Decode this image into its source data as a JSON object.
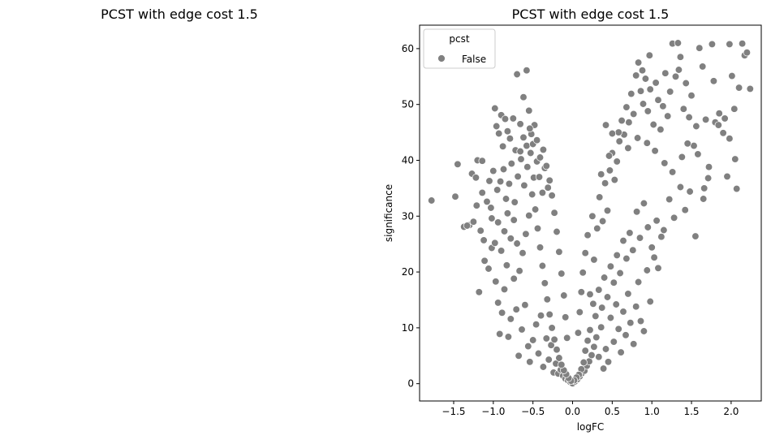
{
  "left_panel": {
    "title": "PCST with edge cost 1.5"
  },
  "chart_data": {
    "type": "scatter",
    "title": "PCST with edge cost 1.5",
    "xlabel": "logFC",
    "ylabel": "significance",
    "xlim": [
      -1.93,
      2.38
    ],
    "ylim": [
      -3.1,
      64.2
    ],
    "xticks": [
      -1.5,
      -1.0,
      -0.5,
      0.0,
      0.5,
      1.0,
      1.5,
      2.0
    ],
    "xtick_labels": [
      "−1.5",
      "−1.0",
      "−0.5",
      "0.0",
      "0.5",
      "1.0",
      "1.5",
      "2.0"
    ],
    "yticks": [
      0,
      10,
      20,
      30,
      40,
      50,
      60
    ],
    "ytick_labels": [
      "0",
      "10",
      "20",
      "30",
      "40",
      "50",
      "60"
    ],
    "legend": {
      "title": "pcst",
      "position": "top-left",
      "entries": [
        {
          "label": "False",
          "color": "#808080"
        }
      ]
    },
    "series": [
      {
        "name": "False",
        "color": "#808080",
        "edge_color": "#ffffff",
        "description": "volcano-shaped gene cloud; representative sample of the visible points",
        "points": [
          [
            -1.78,
            32.8
          ],
          [
            -1.48,
            33.5
          ],
          [
            -1.45,
            39.3
          ],
          [
            -1.37,
            28.1
          ],
          [
            -1.3,
            28.4
          ],
          [
            -1.27,
            37.6
          ],
          [
            -1.22,
            36.9
          ],
          [
            -1.2,
            40.0
          ],
          [
            -1.16,
            27.4
          ],
          [
            -1.14,
            39.9
          ],
          [
            -1.12,
            25.7
          ],
          [
            -1.08,
            32.6
          ],
          [
            -1.03,
            31.5
          ],
          [
            -0.98,
            49.3
          ],
          [
            -0.96,
            46.1
          ],
          [
            -0.93,
            44.8
          ],
          [
            -0.9,
            48.1
          ],
          [
            -0.88,
            42.5
          ],
          [
            -0.85,
            47.4
          ],
          [
            -0.82,
            45.2
          ],
          [
            -0.79,
            43.9
          ],
          [
            -0.75,
            47.5
          ],
          [
            -0.72,
            41.8
          ],
          [
            -0.7,
            55.4
          ],
          [
            -0.66,
            46.5
          ],
          [
            -0.62,
            51.3
          ],
          [
            -0.58,
            56.1
          ],
          [
            -0.55,
            48.9
          ],
          [
            -0.52,
            44.7
          ],
          [
            -0.48,
            46.3
          ],
          [
            -1.05,
            36.3
          ],
          [
            -1.0,
            38.1
          ],
          [
            -0.95,
            34.7
          ],
          [
            -0.91,
            36.2
          ],
          [
            -0.87,
            38.4
          ],
          [
            -0.84,
            33.1
          ],
          [
            -0.8,
            35.8
          ],
          [
            -0.77,
            39.4
          ],
          [
            -0.73,
            32.5
          ],
          [
            -0.69,
            37.1
          ],
          [
            -0.65,
            40.2
          ],
          [
            -0.61,
            35.5
          ],
          [
            -0.57,
            38.8
          ],
          [
            -0.53,
            41.3
          ],
          [
            -0.49,
            36.9
          ],
          [
            -0.45,
            39.8
          ],
          [
            -0.42,
            37.0
          ],
          [
            -0.38,
            34.2
          ],
          [
            -0.35,
            38.6
          ],
          [
            -0.31,
            35.1
          ],
          [
            -1.18,
            16.4
          ],
          [
            -1.11,
            22.0
          ],
          [
            -1.06,
            20.6
          ],
          [
            -1.02,
            24.3
          ],
          [
            -0.97,
            18.3
          ],
          [
            -0.94,
            14.5
          ],
          [
            -0.92,
            8.9
          ],
          [
            -0.89,
            12.7
          ],
          [
            -0.86,
            16.9
          ],
          [
            -0.83,
            21.2
          ],
          [
            -0.81,
            8.4
          ],
          [
            -0.78,
            11.6
          ],
          [
            -0.74,
            18.8
          ],
          [
            -0.71,
            13.3
          ],
          [
            -0.68,
            5.0
          ],
          [
            -0.64,
            9.7
          ],
          [
            -0.6,
            14.1
          ],
          [
            -0.56,
            6.7
          ],
          [
            -0.54,
            3.9
          ],
          [
            -0.5,
            7.8
          ],
          [
            -0.46,
            10.6
          ],
          [
            -0.43,
            5.4
          ],
          [
            -0.4,
            12.2
          ],
          [
            -0.37,
            3.0
          ],
          [
            -0.33,
            8.1
          ],
          [
            -0.3,
            4.3
          ],
          [
            -0.27,
            6.9
          ],
          [
            -0.24,
            2.0
          ],
          [
            -0.21,
            3.6
          ],
          [
            -0.18,
            1.8
          ],
          [
            -0.15,
            2.5
          ],
          [
            -0.12,
            1.4
          ],
          [
            -0.09,
            0.9
          ],
          [
            -0.06,
            0.6
          ],
          [
            -0.03,
            0.3
          ],
          [
            0.0,
            0.05
          ],
          [
            0.03,
            0.4
          ],
          [
            0.06,
            0.8
          ],
          [
            0.09,
            1.3
          ],
          [
            0.12,
            1.9
          ],
          [
            0.15,
            2.3
          ],
          [
            0.18,
            3.2
          ],
          [
            0.21,
            4.0
          ],
          [
            0.24,
            5.1
          ],
          [
            0.27,
            6.6
          ],
          [
            0.3,
            8.3
          ],
          [
            0.33,
            4.8
          ],
          [
            0.36,
            10.1
          ],
          [
            0.39,
            2.7
          ],
          [
            0.42,
            6.2
          ],
          [
            0.45,
            3.9
          ],
          [
            0.48,
            11.8
          ],
          [
            0.52,
            7.5
          ],
          [
            0.55,
            14.2
          ],
          [
            0.58,
            9.8
          ],
          [
            0.61,
            5.6
          ],
          [
            0.64,
            12.9
          ],
          [
            0.67,
            8.7
          ],
          [
            0.7,
            16.1
          ],
          [
            0.73,
            10.9
          ],
          [
            0.77,
            7.1
          ],
          [
            0.8,
            13.8
          ],
          [
            0.83,
            18.2
          ],
          [
            0.86,
            11.2
          ],
          [
            0.9,
            9.4
          ],
          [
            0.94,
            20.3
          ],
          [
            0.98,
            14.7
          ],
          [
            1.03,
            22.6
          ],
          [
            1.08,
            20.7
          ],
          [
            1.12,
            26.3
          ],
          [
            0.22,
            16.0
          ],
          [
            0.27,
            22.2
          ],
          [
            0.31,
            27.8
          ],
          [
            0.34,
            33.4
          ],
          [
            0.38,
            29.1
          ],
          [
            0.41,
            35.9
          ],
          [
            0.44,
            31.0
          ],
          [
            0.47,
            38.2
          ],
          [
            0.5,
            41.3
          ],
          [
            0.53,
            36.5
          ],
          [
            0.56,
            39.8
          ],
          [
            0.59,
            43.4
          ],
          [
            0.62,
            47.1
          ],
          [
            0.65,
            44.6
          ],
          [
            0.68,
            49.5
          ],
          [
            0.71,
            46.8
          ],
          [
            0.74,
            51.9
          ],
          [
            0.77,
            48.3
          ],
          [
            0.8,
            55.2
          ],
          [
            0.83,
            57.5
          ],
          [
            0.86,
            52.4
          ],
          [
            0.89,
            50.1
          ],
          [
            0.92,
            54.6
          ],
          [
            0.95,
            48.8
          ],
          [
            0.98,
            52.7
          ],
          [
            1.02,
            46.4
          ],
          [
            1.05,
            53.9
          ],
          [
            1.08,
            50.8
          ],
          [
            1.11,
            45.5
          ],
          [
            1.14,
            49.7
          ],
          [
            1.17,
            55.6
          ],
          [
            1.2,
            47.9
          ],
          [
            1.23,
            52.3
          ],
          [
            1.26,
            60.9
          ],
          [
            1.3,
            55.0
          ],
          [
            1.33,
            61.0
          ],
          [
            1.36,
            58.5
          ],
          [
            1.4,
            49.2
          ],
          [
            1.43,
            53.8
          ],
          [
            1.47,
            47.7
          ],
          [
            1.5,
            51.6
          ],
          [
            1.53,
            42.6
          ],
          [
            1.56,
            46.1
          ],
          [
            1.6,
            60.1
          ],
          [
            1.64,
            56.8
          ],
          [
            1.68,
            47.3
          ],
          [
            1.72,
            38.8
          ],
          [
            1.76,
            60.8
          ],
          [
            1.8,
            46.8
          ],
          [
            1.85,
            48.4
          ],
          [
            1.9,
            44.9
          ],
          [
            1.95,
            37.1
          ],
          [
            1.98,
            43.9
          ],
          [
            2.01,
            55.1
          ],
          [
            2.04,
            49.2
          ],
          [
            2.07,
            34.9
          ],
          [
            2.1,
            53.0
          ],
          [
            2.14,
            60.9
          ],
          [
            2.17,
            58.8
          ],
          [
            2.24,
            52.8
          ],
          [
            2.2,
            59.3
          ],
          [
            1.98,
            60.8
          ],
          [
            1.78,
            54.2
          ],
          [
            1.71,
            36.8
          ],
          [
            1.65,
            33.1
          ],
          [
            1.55,
            26.4
          ],
          [
            1.48,
            34.4
          ],
          [
            1.42,
            31.1
          ],
          [
            1.36,
            35.2
          ],
          [
            1.28,
            29.7
          ],
          [
            1.22,
            33.0
          ],
          [
            1.15,
            27.5
          ],
          [
            1.06,
            29.2
          ],
          [
            1.0,
            24.4
          ],
          [
            0.95,
            28.0
          ],
          [
            0.9,
            32.3
          ],
          [
            0.85,
            26.1
          ],
          [
            0.81,
            30.8
          ],
          [
            0.76,
            23.9
          ],
          [
            0.72,
            27.0
          ],
          [
            0.68,
            22.4
          ],
          [
            0.64,
            25.6
          ],
          [
            0.6,
            19.8
          ],
          [
            0.56,
            23.0
          ],
          [
            0.52,
            18.1
          ],
          [
            0.48,
            21.0
          ],
          [
            0.44,
            15.5
          ],
          [
            0.4,
            19.0
          ],
          [
            0.37,
            13.6
          ],
          [
            0.33,
            16.8
          ],
          [
            0.29,
            12.1
          ],
          [
            0.26,
            14.3
          ],
          [
            0.22,
            9.6
          ],
          [
            0.19,
            7.7
          ],
          [
            0.16,
            5.9
          ],
          [
            0.14,
            3.8
          ],
          [
            0.11,
            2.6
          ],
          [
            0.08,
            1.6
          ],
          [
            0.05,
            1.1
          ],
          [
            0.02,
            0.6
          ],
          [
            -0.02,
            0.5
          ],
          [
            -0.05,
            1.0
          ],
          [
            -0.08,
            1.7
          ],
          [
            -0.11,
            2.4
          ],
          [
            -0.14,
            3.4
          ],
          [
            -0.17,
            4.6
          ],
          [
            -0.2,
            6.1
          ],
          [
            -0.23,
            7.9
          ],
          [
            -0.26,
            10.0
          ],
          [
            -0.29,
            12.4
          ],
          [
            -0.32,
            15.1
          ],
          [
            -0.35,
            18.0
          ],
          [
            -0.38,
            21.1
          ],
          [
            -0.41,
            24.4
          ],
          [
            -0.44,
            27.8
          ],
          [
            -0.47,
            31.2
          ],
          [
            -0.51,
            33.9
          ],
          [
            -0.55,
            30.1
          ],
          [
            -0.59,
            26.8
          ],
          [
            -0.63,
            23.4
          ],
          [
            -0.67,
            20.2
          ],
          [
            -0.7,
            25.1
          ],
          [
            -0.74,
            29.3
          ],
          [
            -0.78,
            26.0
          ],
          [
            -0.82,
            30.5
          ],
          [
            -0.86,
            27.3
          ],
          [
            -0.9,
            23.8
          ],
          [
            -0.94,
            28.9
          ],
          [
            -0.98,
            25.2
          ],
          [
            -1.02,
            29.6
          ],
          [
            -1.25,
            29.0
          ],
          [
            -1.33,
            28.3
          ],
          [
            -1.21,
            31.9
          ],
          [
            -1.14,
            34.2
          ],
          [
            -0.58,
            42.6
          ],
          [
            -0.62,
            44.1
          ],
          [
            -0.66,
            41.6
          ],
          [
            -0.54,
            45.7
          ],
          [
            -0.5,
            42.9
          ],
          [
            -0.45,
            43.6
          ],
          [
            -0.41,
            40.5
          ],
          [
            -0.37,
            41.9
          ],
          [
            -0.33,
            39.0
          ],
          [
            -0.29,
            36.4
          ],
          [
            -0.26,
            33.7
          ],
          [
            -0.23,
            30.6
          ],
          [
            -0.2,
            27.2
          ],
          [
            -0.17,
            23.6
          ],
          [
            -0.14,
            19.7
          ],
          [
            -0.11,
            15.8
          ],
          [
            -0.09,
            11.9
          ],
          [
            -0.07,
            8.2
          ],
          [
            0.07,
            9.1
          ],
          [
            0.09,
            12.8
          ],
          [
            0.11,
            16.4
          ],
          [
            0.13,
            19.9
          ],
          [
            0.16,
            23.4
          ],
          [
            0.19,
            26.6
          ],
          [
            0.25,
            30.0
          ],
          [
            0.36,
            37.5
          ],
          [
            0.46,
            40.8
          ],
          [
            0.58,
            45.0
          ],
          [
            0.7,
            42.2
          ],
          [
            0.82,
            44.0
          ],
          [
            0.94,
            43.1
          ],
          [
            1.04,
            41.7
          ],
          [
            1.16,
            39.5
          ],
          [
            1.26,
            37.9
          ],
          [
            1.38,
            40.6
          ],
          [
            1.45,
            43.0
          ],
          [
            1.58,
            41.1
          ],
          [
            1.66,
            35.0
          ],
          [
            1.84,
            46.3
          ],
          [
            1.92,
            47.5
          ],
          [
            2.05,
            40.2
          ],
          [
            0.42,
            46.3
          ],
          [
            0.5,
            44.8
          ],
          [
            0.88,
            56.1
          ],
          [
            0.97,
            58.8
          ],
          [
            1.34,
            56.2
          ]
        ]
      }
    ]
  }
}
